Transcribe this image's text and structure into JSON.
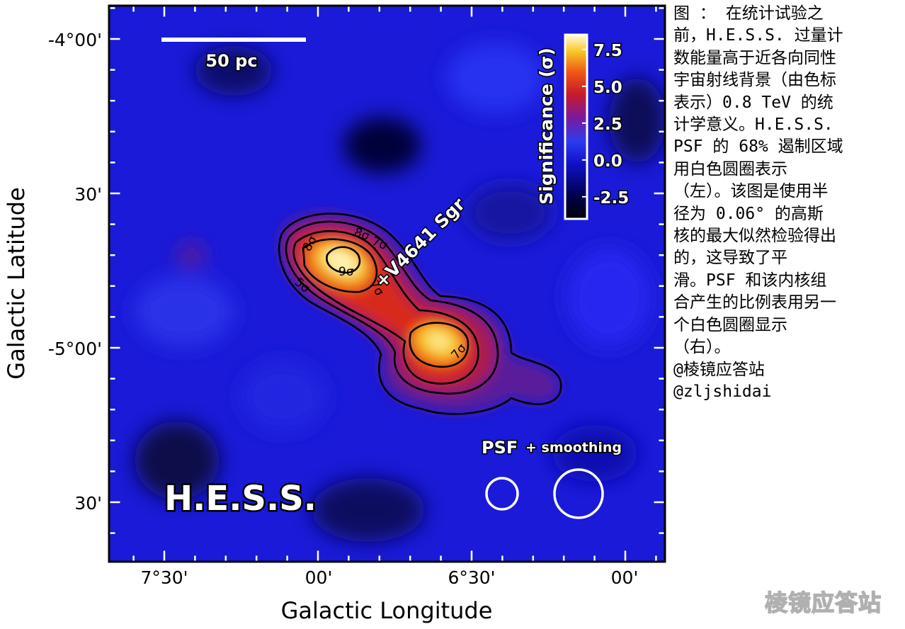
{
  "chart_data": {
    "type": "heatmap",
    "instrument_label": "H.E.S.S.",
    "xlabel": "Galactic Longitude",
    "ylabel": "Galactic Latitude",
    "x_ticks": [
      "7°30'",
      "00'",
      "6°30'",
      "00'"
    ],
    "y_ticks": [
      "-4°00'",
      "30'",
      "-5°00'",
      "30'"
    ],
    "x_ticks_deg": [
      7.5,
      7.0,
      6.5,
      6.0
    ],
    "y_ticks_deg": [
      -4.0,
      -4.5,
      -5.0,
      -5.5
    ],
    "xlim_deg": [
      7.68,
      5.88
    ],
    "ylim_deg": [
      -5.69,
      -3.89
    ],
    "colorbar": {
      "label": "Significance (σ)",
      "ticks": [
        7.5,
        5.0,
        2.5,
        0.0,
        -2.5
      ],
      "tick_labels": [
        "7.5",
        "5.0",
        "2.5",
        "0.0",
        "-2.5"
      ],
      "range": [
        -4.0,
        8.5
      ]
    },
    "source": {
      "name": "+V4641 Sgr",
      "l_deg": 6.77,
      "b_deg": -4.79
    },
    "scale_bar": {
      "label": "50 pc"
    },
    "contours": [
      {
        "level_label": "5σ",
        "sigma": 5
      },
      {
        "level_label": "6σ",
        "sigma": 6
      },
      {
        "level_label": "7σ",
        "sigma": 7
      },
      {
        "level_label": "8σ",
        "sigma": 8
      },
      {
        "level_label": "9σ",
        "sigma": 9
      }
    ],
    "contour_labels": [
      "5σ",
      "6σ",
      "7σ",
      "8σ",
      "9σ",
      "7σ",
      "8σ",
      "5σ",
      "7σ"
    ],
    "hotspots": [
      {
        "l_deg": 6.97,
        "b_deg": -4.69,
        "peak_sigma": 9.5
      },
      {
        "l_deg": 6.62,
        "b_deg": -4.96,
        "peak_sigma": 8.2
      },
      {
        "l_deg": 6.3,
        "b_deg": -5.12,
        "peak_sigma": 3.2
      }
    ],
    "circles": [
      {
        "label": "PSF"
      },
      {
        "label": "+ smoothing"
      }
    ]
  },
  "colors": {
    "background": "#1a1ad8",
    "colormap": [
      "#000008",
      "#00004a",
      "#1010c8",
      "#2a3cf0",
      "#7a1a9c",
      "#c81a2a",
      "#f05a14",
      "#f8c828",
      "#fffde0"
    ]
  },
  "caption": {
    "lines": [
      "图 ： 在统计试验之",
      "前，H.E.S.S. 过量计",
      "数能量高于近各向同性",
      "宇宙射线背景（由色标",
      "表示）0.8 TeV 的统",
      "计学意义。H.E.S.S.",
      "PSF 的 68% 遏制区域",
      "用白色圆圈表示",
      "（左）。该图是使用半",
      "径为 0.06° 的高斯",
      "核的最大似然检验得出",
      "的，这导致了平",
      "滑。PSF 和该内核组",
      "合产生的比例表用另一",
      "个白色圆圈显示",
      "（右）。",
      "@棱镜应答站",
      "@zljshidai"
    ]
  },
  "watermark": "棱镜应答站"
}
